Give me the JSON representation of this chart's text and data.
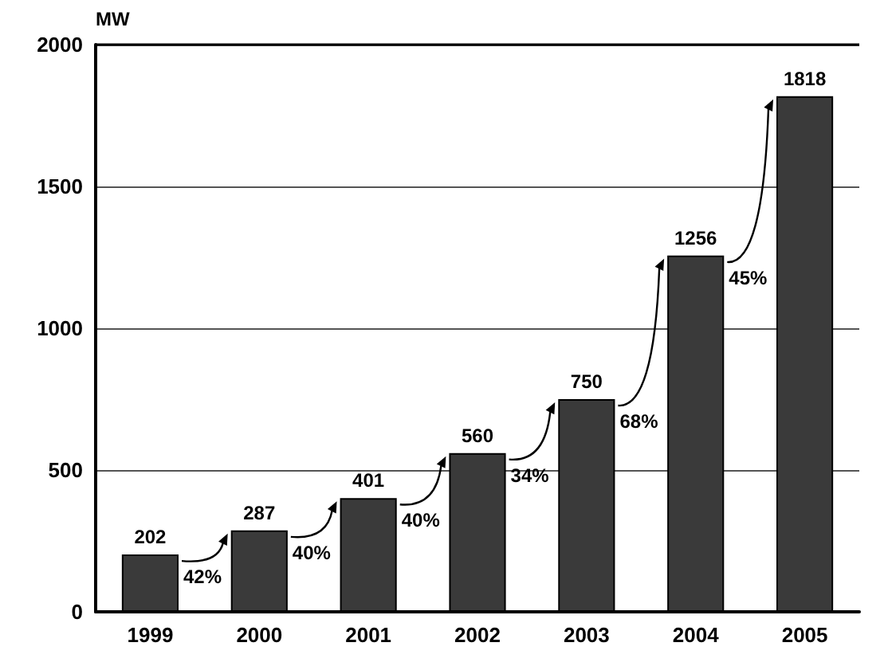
{
  "chart_data": {
    "type": "bar",
    "ylabel": "MW",
    "categories": [
      "1999",
      "2000",
      "2001",
      "2002",
      "2003",
      "2004",
      "2005"
    ],
    "values": [
      202,
      287,
      401,
      560,
      750,
      1256,
      1818
    ],
    "color": "#3a3a3a",
    "ylim": [
      0,
      2000
    ],
    "yticks": [
      0,
      500,
      1000,
      1500,
      2000
    ],
    "grid": "y",
    "data_labels": true,
    "annotations": [
      "42%",
      "40%",
      "40%",
      "34%",
      "68%",
      "45%"
    ]
  }
}
